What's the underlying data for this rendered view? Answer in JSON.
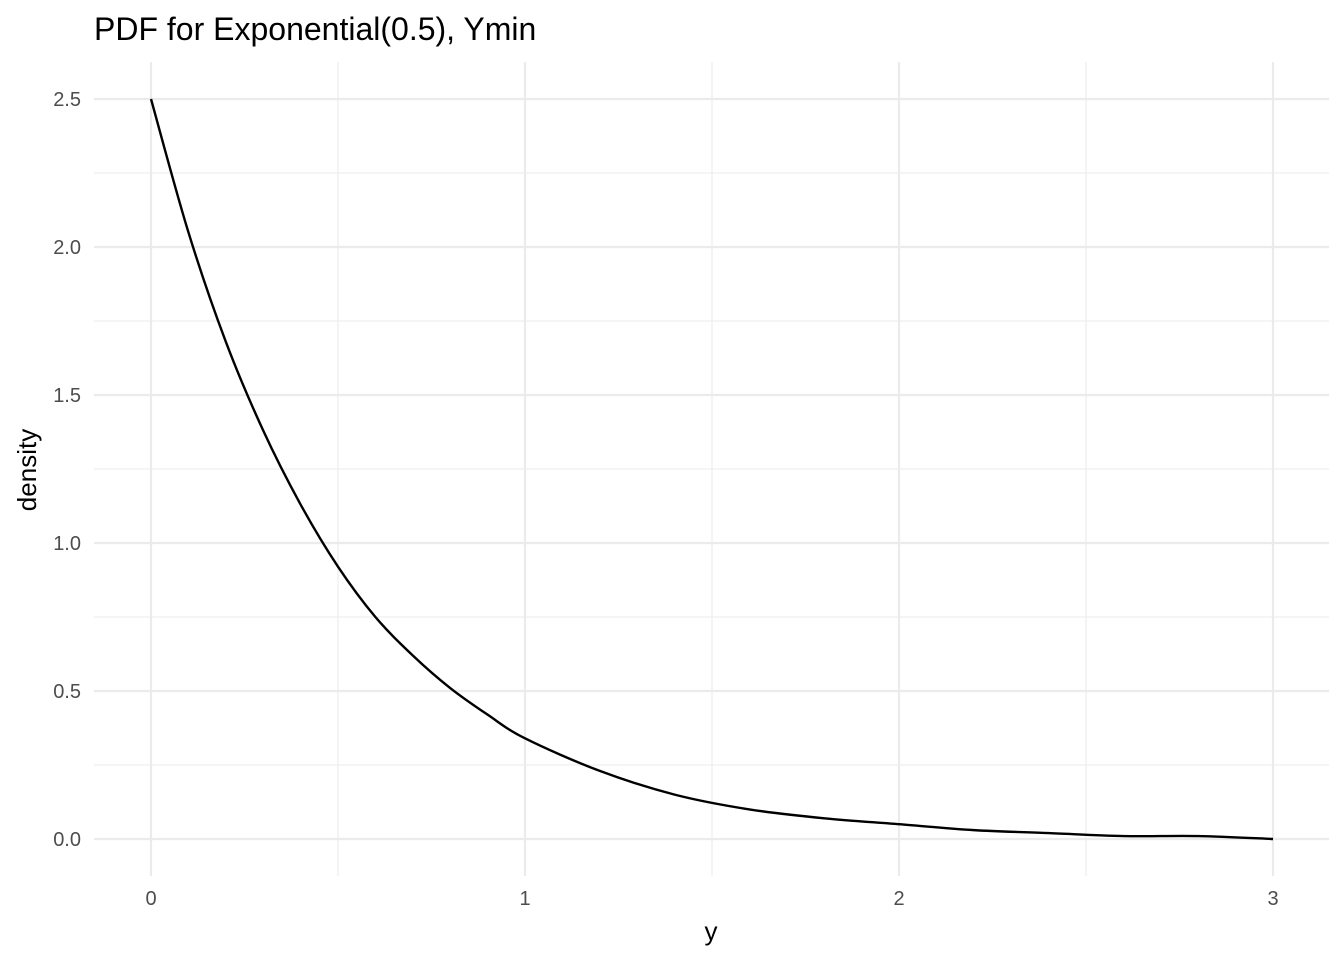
{
  "chart_data": {
    "type": "line",
    "title": "PDF for Exponential(0.5), Ymin",
    "xlabel": "y",
    "ylabel": "density",
    "xlim": [
      0,
      3
    ],
    "ylim": [
      0,
      2.5
    ],
    "x_ticks": [
      "0",
      "1",
      "2",
      "3"
    ],
    "y_ticks": [
      "0.0",
      "0.5",
      "1.0",
      "1.5",
      "2.0",
      "2.5"
    ],
    "grid": true,
    "series": [
      {
        "color": "#000000",
        "x": [
          0,
          0.1,
          0.2,
          0.3,
          0.4,
          0.5,
          0.6,
          0.7,
          0.8,
          0.9,
          1.0,
          1.2,
          1.4,
          1.6,
          1.8,
          2.0,
          2.2,
          2.4,
          2.6,
          2.8,
          3.0
        ],
        "y": [
          2.5,
          2.05,
          1.68,
          1.38,
          1.13,
          0.92,
          0.75,
          0.62,
          0.51,
          0.42,
          0.34,
          0.23,
          0.15,
          0.1,
          0.07,
          0.05,
          0.03,
          0.02,
          0.01,
          0.01,
          0.0
        ]
      }
    ]
  }
}
